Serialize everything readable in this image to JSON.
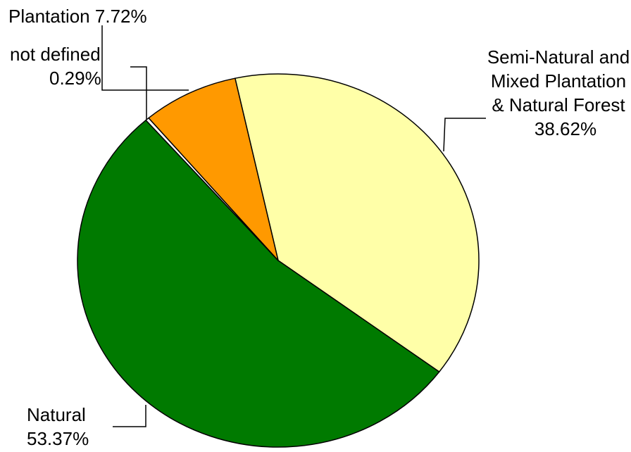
{
  "chart_data": {
    "type": "pie",
    "categories": [
      "Semi-Natural and Mixed Plantation & Natural Forest",
      "Natural",
      "not defined",
      "Plantation"
    ],
    "values": [
      38.62,
      53.37,
      0.29,
      7.72
    ],
    "value_labels": [
      "38.62%",
      "53.37%",
      "0.29%",
      "7.72%"
    ],
    "colors": [
      "#ffffa8",
      "#007a00",
      "#ffffff",
      "#ff9900"
    ]
  }
}
